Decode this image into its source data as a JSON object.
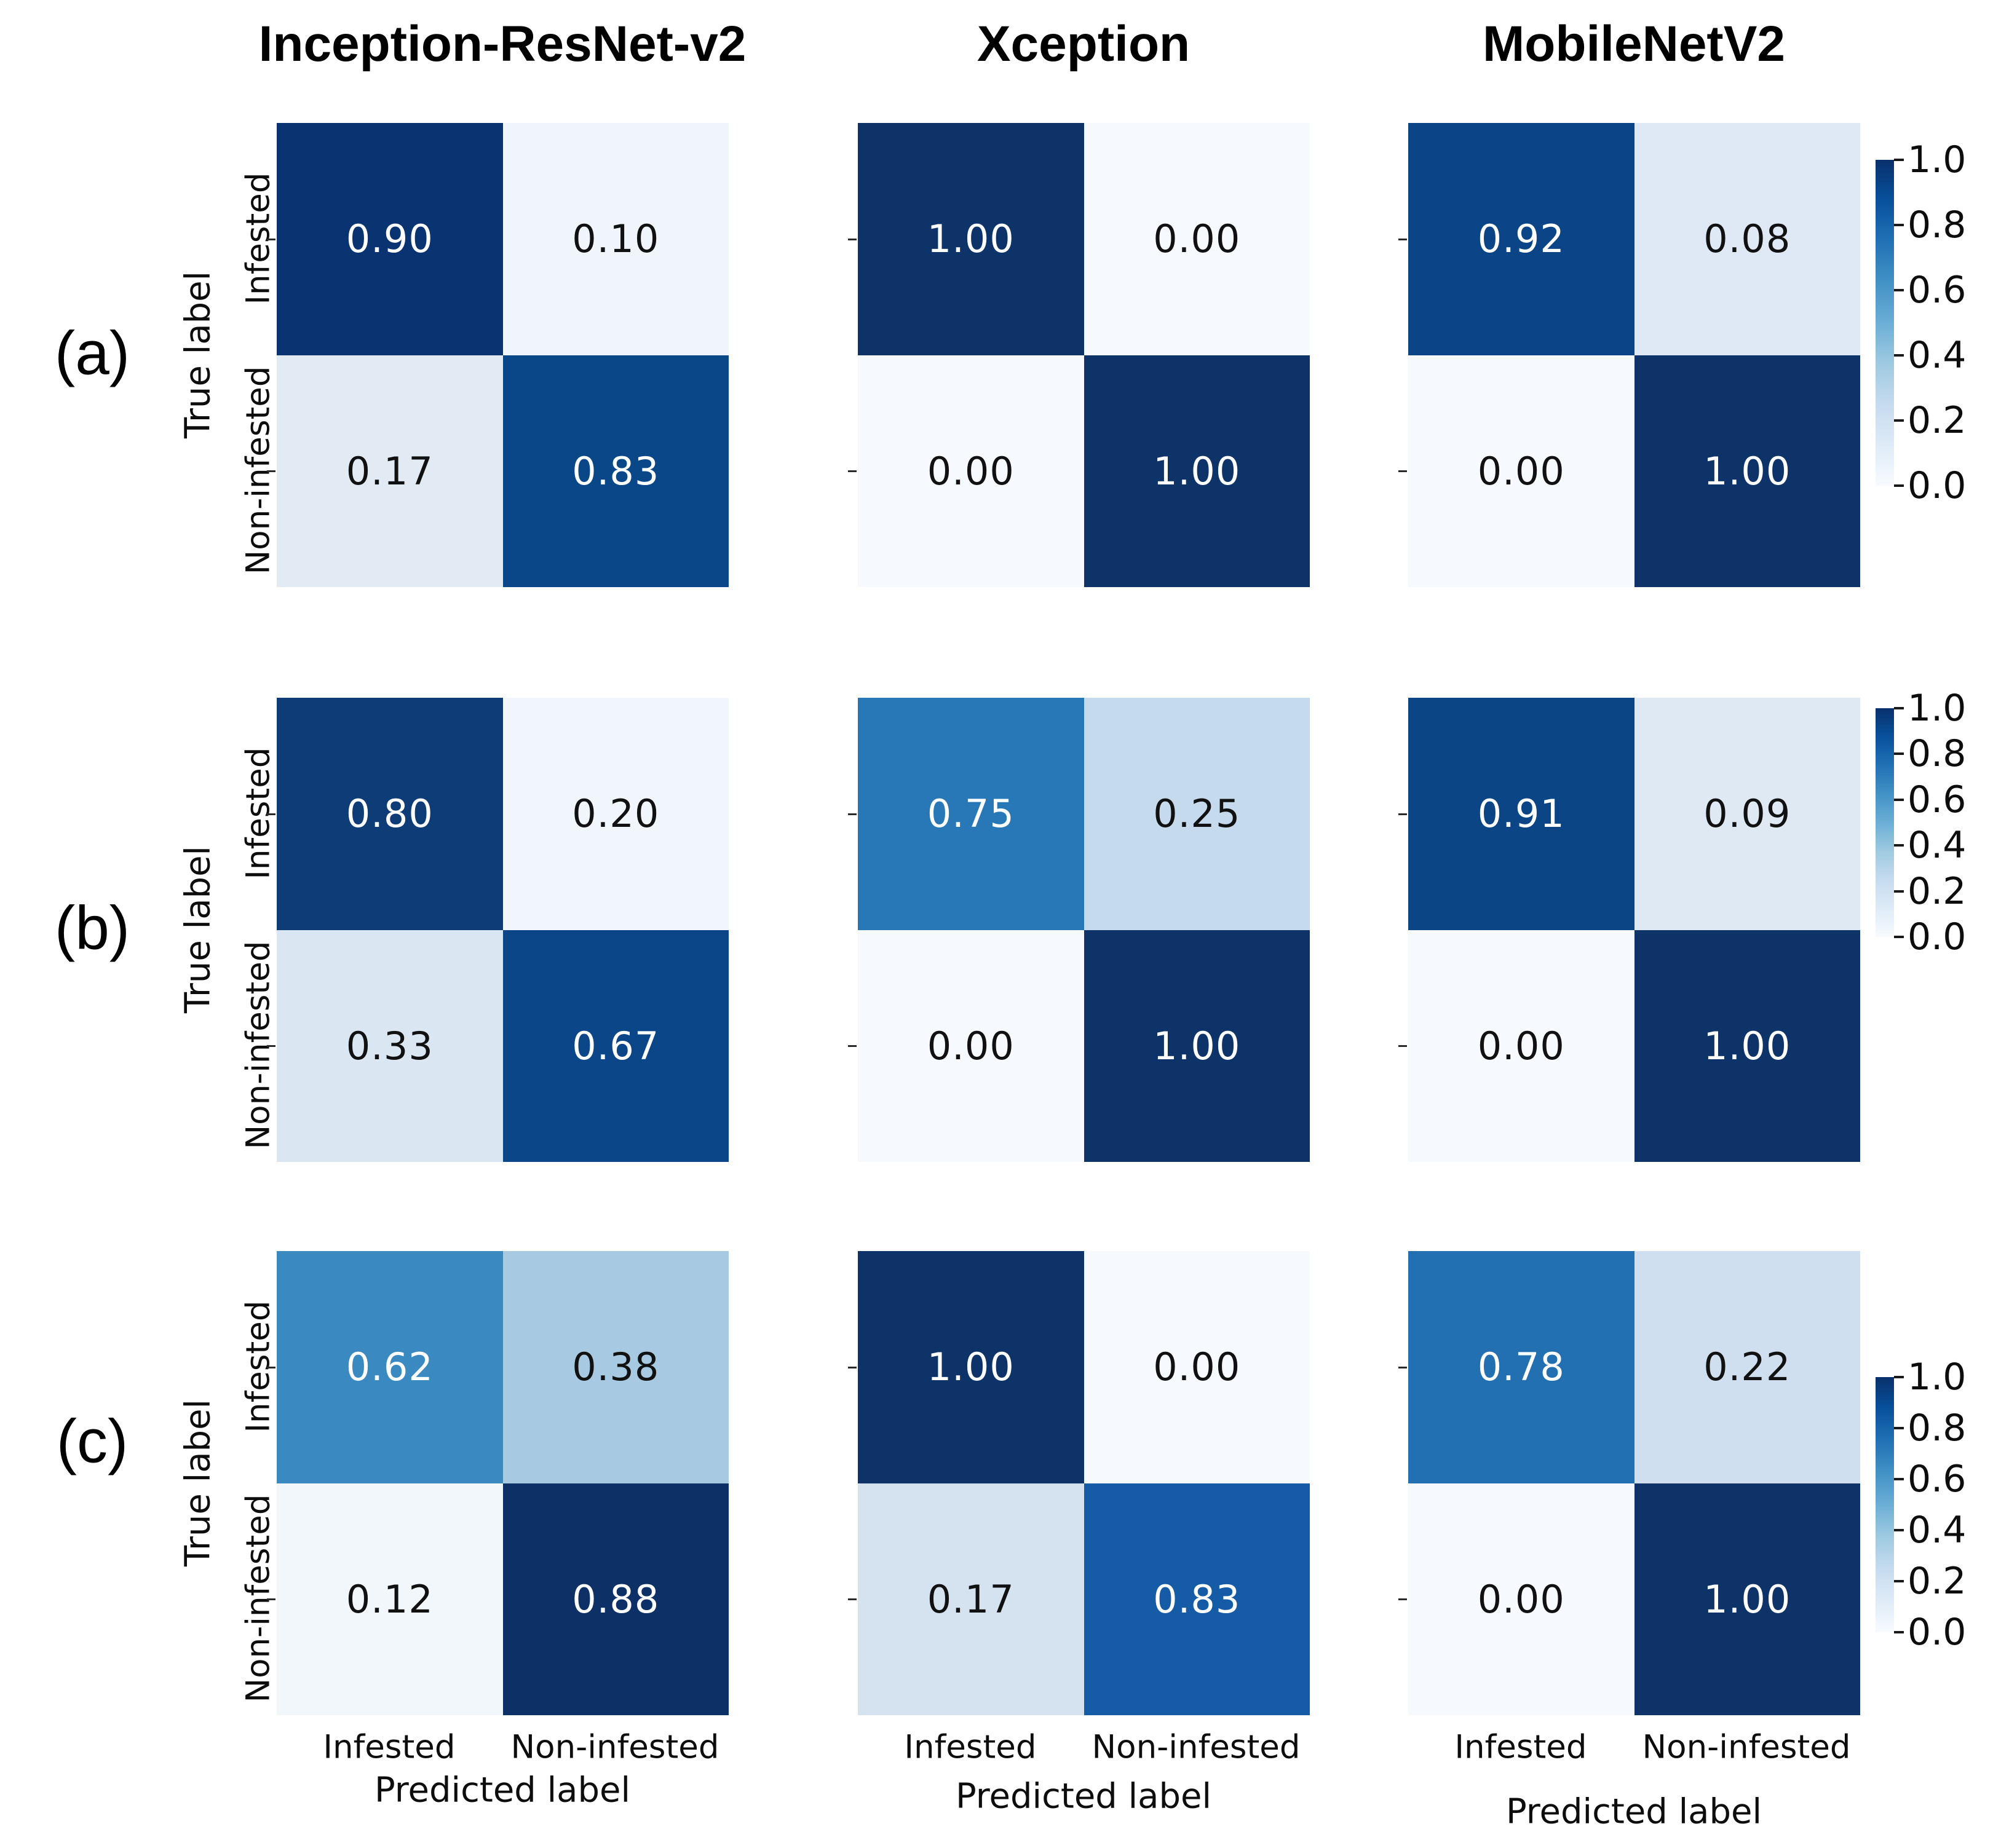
{
  "figure": {
    "title_row": [
      "Inception-ResNet-v2",
      "Xception",
      "MobileNetV2"
    ],
    "panel_labels": [
      "(a)",
      "(b)",
      "(c)"
    ],
    "y_axis_title": "True label",
    "x_axis_title": "Predicted label",
    "class_labels": [
      "Infested",
      "Non-infested"
    ],
    "colorbar": {
      "tick_labels": [
        "1.0",
        "0.8",
        "0.6",
        "0.4",
        "0.2",
        "0.0"
      ],
      "range": [
        0.0,
        1.0
      ],
      "gradient_stops": [
        "#08306b",
        "#08519c",
        "#2171b5",
        "#4292c6",
        "#6baed6",
        "#9ecae1",
        "#c6dbef",
        "#deebf7",
        "#f7fbff"
      ]
    }
  },
  "chart_data": [
    {
      "type": "heatmap",
      "panel": "(a)",
      "model": "Inception-ResNet-v2",
      "x_label": "Predicted label",
      "y_label": "True label",
      "x_categories": [
        "Infested",
        "Non-infested"
      ],
      "y_categories": [
        "Infested",
        "Non-infested"
      ],
      "values": [
        [
          0.9,
          0.1
        ],
        [
          0.17,
          0.83
        ]
      ],
      "cell_colors": [
        [
          "#0a3371",
          "#f0f5fb"
        ],
        [
          "#e2eaf4",
          "#0a4789"
        ]
      ],
      "vmin": 0.0,
      "vmax": 1.0
    },
    {
      "type": "heatmap",
      "panel": "(a)",
      "model": "Xception",
      "x_label": "Predicted label",
      "y_label": "True label",
      "x_categories": [
        "Infested",
        "Non-infested"
      ],
      "y_categories": [
        "Infested",
        "Non-infested"
      ],
      "values": [
        [
          1.0,
          0.0
        ],
        [
          0.0,
          1.0
        ]
      ],
      "cell_colors": [
        [
          "#0e3369",
          "#f6fafe"
        ],
        [
          "#f6fafe",
          "#0e3369"
        ]
      ],
      "vmin": 0.0,
      "vmax": 1.0
    },
    {
      "type": "heatmap",
      "panel": "(a)",
      "model": "MobileNetV2",
      "x_label": "Predicted label",
      "y_label": "True label",
      "x_categories": [
        "Infested",
        "Non-infested"
      ],
      "y_categories": [
        "Infested",
        "Non-infested"
      ],
      "values": [
        [
          0.92,
          0.08
        ],
        [
          0.0,
          1.0
        ]
      ],
      "cell_colors": [
        [
          "#0b4587",
          "#dfe9f5"
        ],
        [
          "#f6fafe",
          "#0e3369"
        ]
      ],
      "vmin": 0.0,
      "vmax": 1.0
    },
    {
      "type": "heatmap",
      "panel": "(b)",
      "model": "Inception-ResNet-v2",
      "x_label": "Predicted label",
      "y_label": "True label",
      "x_categories": [
        "Infested",
        "Non-infested"
      ],
      "y_categories": [
        "Infested",
        "Non-infested"
      ],
      "values": [
        [
          0.8,
          0.2
        ],
        [
          0.33,
          0.67
        ]
      ],
      "cell_colors": [
        [
          "#0d3c77",
          "#f1f6fc"
        ],
        [
          "#dbe6f3",
          "#0b4689"
        ]
      ],
      "vmin": 0.0,
      "vmax": 1.0
    },
    {
      "type": "heatmap",
      "panel": "(b)",
      "model": "Xception",
      "x_label": "Predicted label",
      "y_label": "True label",
      "x_categories": [
        "Infested",
        "Non-infested"
      ],
      "y_categories": [
        "Infested",
        "Non-infested"
      ],
      "values": [
        [
          0.75,
          0.25
        ],
        [
          0.0,
          1.0
        ]
      ],
      "cell_colors": [
        [
          "#2878b8",
          "#c6daee"
        ],
        [
          "#f6fafe",
          "#0e3369"
        ]
      ],
      "vmin": 0.0,
      "vmax": 1.0
    },
    {
      "type": "heatmap",
      "panel": "(b)",
      "model": "MobileNetV2",
      "x_label": "Predicted label",
      "y_label": "True label",
      "x_categories": [
        "Infested",
        "Non-infested"
      ],
      "y_categories": [
        "Infested",
        "Non-infested"
      ],
      "values": [
        [
          0.91,
          0.09
        ],
        [
          0.0,
          1.0
        ]
      ],
      "cell_colors": [
        [
          "#0b4586",
          "#dfe9f4"
        ],
        [
          "#f6fafe",
          "#0e3369"
        ]
      ],
      "vmin": 0.0,
      "vmax": 1.0
    },
    {
      "type": "heatmap",
      "panel": "(c)",
      "model": "Inception-ResNet-v2",
      "x_label": "Predicted label",
      "y_label": "True label",
      "x_categories": [
        "Infested",
        "Non-infested"
      ],
      "y_categories": [
        "Infested",
        "Non-infested"
      ],
      "values": [
        [
          0.62,
          0.38
        ],
        [
          0.12,
          0.88
        ]
      ],
      "cell_colors": [
        [
          "#3a89c1",
          "#a7cae2"
        ],
        [
          "#f2f7fc",
          "#0d3166"
        ]
      ],
      "vmin": 0.0,
      "vmax": 1.0
    },
    {
      "type": "heatmap",
      "panel": "(c)",
      "model": "Xception",
      "x_label": "Predicted label",
      "y_label": "True label",
      "x_categories": [
        "Infested",
        "Non-infested"
      ],
      "y_categories": [
        "Infested",
        "Non-infested"
      ],
      "values": [
        [
          1.0,
          0.0
        ],
        [
          0.17,
          0.83
        ]
      ],
      "cell_colors": [
        [
          "#0e3369",
          "#f6fafe"
        ],
        [
          "#d5e3f1",
          "#155ba5"
        ]
      ],
      "vmin": 0.0,
      "vmax": 1.0
    },
    {
      "type": "heatmap",
      "panel": "(c)",
      "model": "MobileNetV2",
      "x_label": "Predicted label",
      "y_label": "True label",
      "x_categories": [
        "Infested",
        "Non-infested"
      ],
      "y_categories": [
        "Infested",
        "Non-infested"
      ],
      "values": [
        [
          0.78,
          0.22
        ],
        [
          0.0,
          1.0
        ]
      ],
      "cell_colors": [
        [
          "#2270b2",
          "#cfdfef"
        ],
        [
          "#f6fafe",
          "#0e3369"
        ]
      ],
      "vmin": 0.0,
      "vmax": 1.0
    }
  ]
}
